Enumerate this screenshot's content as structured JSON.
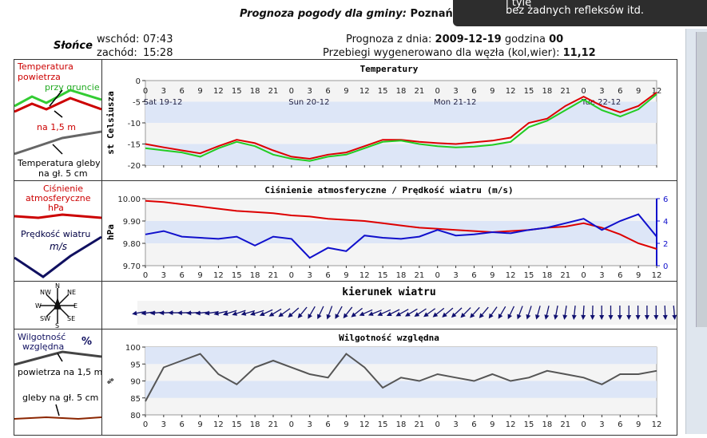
{
  "header": {
    "title_prefix": "Prognoza pogody dla gminy:",
    "city": "Poznań"
  },
  "tooltip": {
    "line1": "i tyle",
    "line2": "bez żadnych refleksów itd."
  },
  "sun": {
    "label": "Słońce",
    "sunrise_label": "wschód:",
    "sunrise": "07:43",
    "sunset_label": "zachód:",
    "sunset": "15:28"
  },
  "forecast": {
    "date_label": "Prognoza z dnia:",
    "date": "2009-12-19",
    "hour_label": "godzina",
    "hour": "00",
    "node_label": "Przebiegi wygenerowano dla węzła (kol,wier):",
    "node": "11,12"
  },
  "legends": {
    "temp": {
      "title": "Temperatura powietrza",
      "ground": "przy gruncie",
      "air": "na 1,5 m",
      "soil": "Temperatura gleby na gł. 5 cm"
    },
    "pressure": {
      "title": "Ciśnienie atmosferyczne hPa",
      "wind": "Prędkość wiatru",
      "wind_unit": "m/s"
    },
    "compass": {
      "n": "N",
      "ne": "NE",
      "nw": "NW",
      "e": "E",
      "w": "W",
      "s": "S",
      "se": "SE",
      "sw": "SW"
    },
    "humidity": {
      "title": "Wilgotność względna",
      "unit": "%",
      "air": "powietrza na 1,5 m",
      "soil": "gleby na gł. 5 cm"
    }
  },
  "colors": {
    "red": "#dd0000",
    "green": "#22cc22",
    "blue": "#1010cc",
    "gray": "#555555",
    "band": "#dde6f7"
  },
  "hour_ticks": [
    "0",
    "3",
    "6",
    "9",
    "12",
    "15",
    "18",
    "21",
    "0",
    "3",
    "6",
    "9",
    "12",
    "15",
    "18",
    "21",
    "0",
    "3",
    "6",
    "9",
    "12",
    "15",
    "18",
    "21",
    "0",
    "3",
    "6",
    "9",
    "12"
  ],
  "chart_data": [
    {
      "type": "line",
      "title": "Temperatury",
      "ylabel": "st Celsiusza",
      "ylim": [
        -20,
        0
      ],
      "yticks": [
        "0",
        "-5",
        "-10",
        "-15",
        "-20"
      ],
      "day_labels": [
        "Sat 19-12",
        "Sun 20-12",
        "Mon 21-12",
        "Tue 22-12"
      ],
      "x_hours": [
        0,
        3,
        6,
        9,
        12,
        15,
        18,
        21,
        24,
        27,
        30,
        33,
        36,
        39,
        42,
        45,
        48,
        51,
        54,
        57,
        60,
        63,
        66,
        69,
        72,
        75,
        78,
        81,
        84
      ],
      "series": [
        {
          "key": "air",
          "color": "#dd0000",
          "values": [
            -15.0,
            -15.8,
            -16.5,
            -17.2,
            -15.5,
            -14.0,
            -14.8,
            -16.5,
            -18.0,
            -18.5,
            -17.5,
            -17.0,
            -15.5,
            -14.0,
            -14.0,
            -14.5,
            -14.8,
            -15.0,
            -14.6,
            -14.2,
            -13.5,
            -10.0,
            -9.0,
            -6.0,
            -3.8,
            -6.0,
            -7.5,
            -6.0,
            -2.8
          ]
        },
        {
          "key": "ground",
          "color": "#22cc22",
          "values": [
            -16.0,
            -16.5,
            -17.0,
            -18.0,
            -16.0,
            -14.5,
            -15.5,
            -17.5,
            -18.5,
            -19.0,
            -18.0,
            -17.5,
            -16.0,
            -14.5,
            -14.2,
            -15.0,
            -15.5,
            -15.8,
            -15.6,
            -15.2,
            -14.5,
            -11.0,
            -9.5,
            -7.0,
            -4.5,
            -7.0,
            -8.5,
            -6.8,
            -3.2
          ]
        }
      ]
    },
    {
      "type": "line",
      "title": "Ciśnienie atmosferyczne / Prędkość wiatru (m/s)",
      "ylabel": "hPa",
      "ylim": [
        9.7,
        10.0
      ],
      "yticks": [
        "10.00",
        "9.90",
        "9.80",
        "9.70"
      ],
      "y2lim": [
        0,
        6
      ],
      "y2ticks": [
        "6",
        "4",
        "2",
        "0"
      ],
      "x_hours": [
        0,
        3,
        6,
        9,
        12,
        15,
        18,
        21,
        24,
        27,
        30,
        33,
        36,
        39,
        42,
        45,
        48,
        51,
        54,
        57,
        60,
        63,
        66,
        69,
        72,
        75,
        78,
        81,
        84
      ],
      "series": [
        {
          "key": "pressure",
          "axis": "left",
          "color": "#dd0000",
          "values": [
            9.99,
            9.985,
            9.975,
            9.965,
            9.955,
            9.945,
            9.94,
            9.935,
            9.925,
            9.92,
            9.91,
            9.905,
            9.9,
            9.89,
            9.88,
            9.87,
            9.865,
            9.86,
            9.855,
            9.85,
            9.855,
            9.86,
            9.87,
            9.875,
            9.89,
            9.87,
            9.84,
            9.8,
            9.775
          ]
        },
        {
          "key": "wind",
          "axis": "right",
          "color": "#1010cc",
          "values": [
            2.8,
            3.1,
            2.6,
            2.5,
            2.4,
            2.6,
            1.8,
            2.6,
            2.4,
            0.7,
            1.6,
            1.3,
            2.7,
            2.5,
            2.4,
            2.6,
            3.2,
            2.7,
            2.8,
            3.0,
            2.9,
            3.2,
            3.4,
            3.8,
            4.2,
            3.2,
            4.0,
            4.6,
            2.6
          ]
        }
      ]
    },
    {
      "type": "line",
      "title": "kierunek wiatru",
      "x_hours": [
        0,
        3,
        6,
        9,
        12,
        15,
        18,
        21,
        24,
        27,
        30,
        33,
        36,
        39,
        42,
        45,
        48,
        51,
        54,
        57,
        60,
        63,
        66,
        69,
        72,
        75,
        78,
        81,
        84
      ],
      "series": [
        {
          "key": "wind_direction_deg",
          "color": "#1010cc",
          "values": [
            260,
            265,
            270,
            265,
            260,
            250,
            255,
            240,
            230,
            210,
            200,
            220,
            250,
            245,
            240,
            235,
            230,
            225,
            220,
            210,
            200,
            195,
            190,
            185,
            180,
            180,
            180,
            180,
            175
          ]
        }
      ]
    },
    {
      "type": "line",
      "title": "Wilgotność względna",
      "ylabel": "%",
      "ylim": [
        80,
        100
      ],
      "yticks": [
        "100",
        "95",
        "90",
        "85",
        "80"
      ],
      "x_hours": [
        0,
        3,
        6,
        9,
        12,
        15,
        18,
        21,
        24,
        27,
        30,
        33,
        36,
        39,
        42,
        45,
        48,
        51,
        54,
        57,
        60,
        63,
        66,
        69,
        72,
        75,
        78,
        81,
        84
      ],
      "series": [
        {
          "key": "humidity",
          "color": "#555555",
          "values": [
            84,
            94,
            96,
            98,
            92,
            89,
            94,
            96,
            94,
            92,
            91,
            98,
            94,
            88,
            91,
            90,
            92,
            91,
            90,
            92,
            90,
            91,
            93,
            92,
            91,
            89,
            92,
            92,
            93
          ]
        }
      ]
    }
  ]
}
